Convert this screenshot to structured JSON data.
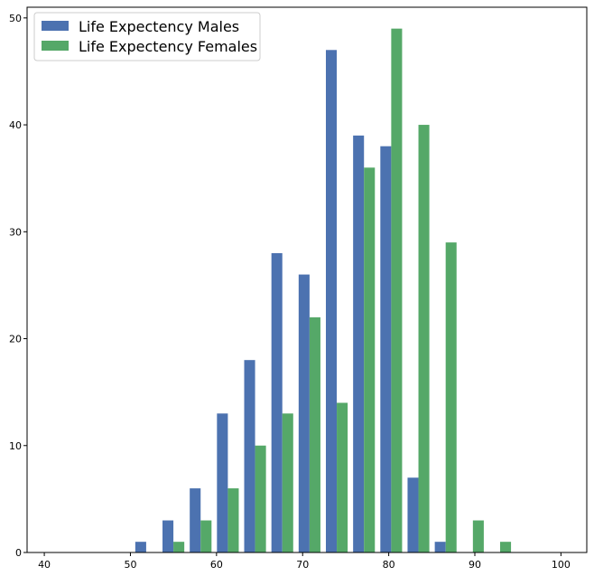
{
  "chart_data": {
    "type": "bar",
    "title": "",
    "xlabel": "",
    "ylabel": "",
    "xlim": [
      38,
      103
    ],
    "ylim": [
      0,
      51
    ],
    "x_ticks": [
      40,
      50,
      60,
      70,
      80,
      90,
      100
    ],
    "y_ticks": [
      0,
      10,
      20,
      30,
      40,
      50
    ],
    "grid": false,
    "legend_position": "top-left",
    "bin_edges": [
      50.25,
      53.412,
      56.574,
      59.736,
      62.898,
      66.06,
      69.222,
      72.384,
      75.546,
      78.708,
      81.87,
      85.032,
      88.194,
      91.356,
      94.518
    ],
    "series": [
      {
        "name": "Life Expectency Males",
        "color": "#4c72b0",
        "values": [
          1,
          3,
          6,
          13,
          18,
          28,
          26,
          47,
          39,
          38,
          7,
          1,
          0,
          0
        ]
      },
      {
        "name": "Life Expectency Females",
        "color": "#55a868",
        "values": [
          0,
          1,
          3,
          6,
          10,
          13,
          22,
          14,
          36,
          49,
          40,
          29,
          3,
          1
        ]
      }
    ]
  }
}
